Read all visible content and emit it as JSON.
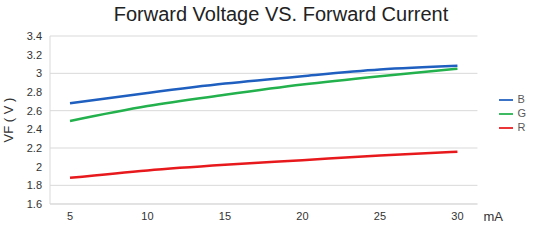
{
  "chart_data": {
    "type": "line",
    "title": "Forward Voltage VS. Forward Current",
    "y_label": "VF ( V )",
    "x_label": "mA",
    "categories": [
      5,
      10,
      15,
      20,
      25,
      30
    ],
    "series": [
      {
        "name": "R",
        "color": "#e8191c",
        "values": [
          1.88,
          1.96,
          2.02,
          2.07,
          2.12,
          2.16
        ]
      },
      {
        "name": "G",
        "color": "#22b14c",
        "values": [
          2.49,
          2.65,
          2.77,
          2.88,
          2.97,
          3.05
        ]
      },
      {
        "name": "B",
        "color": "#1f5fbf",
        "values": [
          2.68,
          2.79,
          2.89,
          2.97,
          3.04,
          3.08
        ]
      }
    ],
    "ylim": [
      1.6,
      3.4
    ],
    "yticks": [
      1.6,
      1.8,
      2,
      2.2,
      2.4,
      2.6,
      2.8,
      3,
      3.2,
      3.4
    ],
    "grid": true,
    "legend": "right"
  }
}
